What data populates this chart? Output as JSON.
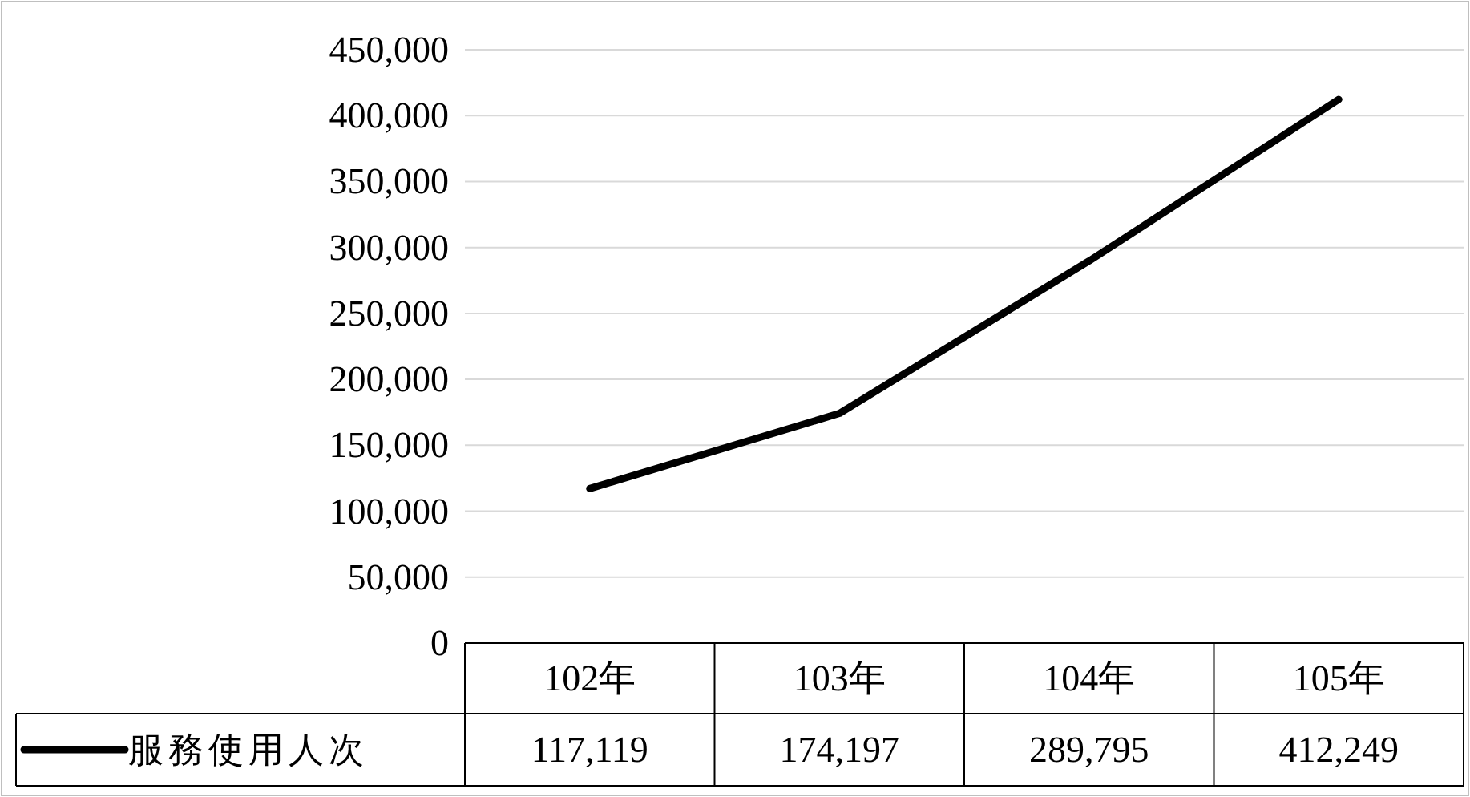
{
  "chart_data": {
    "type": "line",
    "categories": [
      "102年",
      "103年",
      "104年",
      "105年"
    ],
    "series": [
      {
        "name": "服務使用人次",
        "color": "#000000",
        "values": [
          117119,
          174197,
          289795,
          412249
        ],
        "value_labels": [
          "117,119",
          "174,197",
          "289,795",
          "412,249"
        ]
      }
    ],
    "ylim": [
      0,
      450000
    ],
    "yticks": [
      {
        "value": 0,
        "label": "0"
      },
      {
        "value": 50000,
        "label": "50,000"
      },
      {
        "value": 100000,
        "label": "100,000"
      },
      {
        "value": 150000,
        "label": "150,000"
      },
      {
        "value": 200000,
        "label": "200,000"
      },
      {
        "value": 250000,
        "label": "250,000"
      },
      {
        "value": 300000,
        "label": "300,000"
      },
      {
        "value": 350000,
        "label": "350,000"
      },
      {
        "value": 400000,
        "label": "400,000"
      },
      {
        "value": 450000,
        "label": "450,000"
      }
    ],
    "grid": "y",
    "legend": "bottom",
    "marker": "none",
    "line_style": "solid"
  }
}
